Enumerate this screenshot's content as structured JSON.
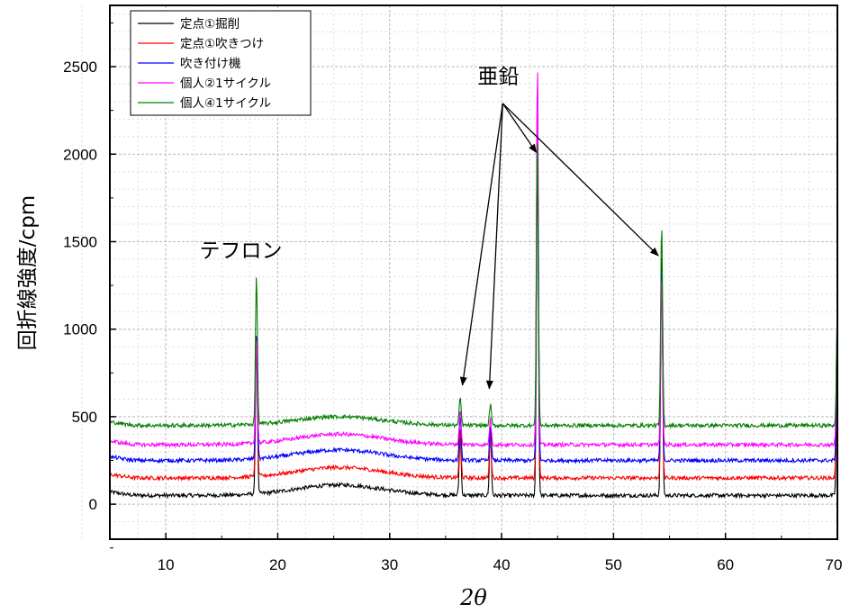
{
  "chart_data": {
    "type": "line",
    "xlabel": "2θ",
    "ylabel": "回折線強度/cpm",
    "xlim": [
      5,
      70
    ],
    "ylim": [
      -200,
      2850
    ],
    "xticks": [
      10,
      20,
      30,
      40,
      50,
      60,
      70
    ],
    "yticks": [
      0,
      500,
      1000,
      1500,
      2000,
      2500
    ],
    "grid": true,
    "legend_position": "top-left",
    "series": [
      {
        "name": "定点①掘削",
        "color": "#000000",
        "baseline": 50,
        "hump": 60,
        "peaks": [
          [
            18.1,
            900
          ],
          [
            36.3,
            350
          ],
          [
            39.0,
            380
          ],
          [
            43.2,
            2050
          ],
          [
            54.3,
            1400
          ],
          [
            70.0,
            1000
          ]
        ]
      },
      {
        "name": "定点①吹きつけ",
        "color": "#ff0000",
        "baseline": 150,
        "hump": 60,
        "peaks": [
          [
            18.1,
            820
          ],
          [
            36.3,
            280
          ],
          [
            39.0,
            260
          ],
          [
            43.2,
            2300
          ],
          [
            54.3,
            1200
          ],
          [
            70.0,
            900
          ]
        ]
      },
      {
        "name": "吹き付け機",
        "color": "#0000ff",
        "baseline": 250,
        "hump": 60,
        "peaks": [
          [
            18.1,
            720
          ],
          [
            36.3,
            260
          ],
          [
            39.0,
            200
          ],
          [
            43.2,
            1950
          ],
          [
            54.3,
            1100
          ],
          [
            70.0,
            850
          ]
        ]
      },
      {
        "name": "個人②1サイクル",
        "color": "#ff00ff",
        "baseline": 340,
        "hump": 60,
        "peaks": [
          [
            18.1,
            600
          ],
          [
            36.3,
            200
          ],
          [
            39.0,
            150
          ],
          [
            43.2,
            2180
          ],
          [
            54.3,
            950
          ],
          [
            70.0,
            750
          ]
        ]
      },
      {
        "name": "個人④1サイクル",
        "color": "#008000",
        "baseline": 450,
        "hump": 50,
        "peaks": [
          [
            18.1,
            850
          ],
          [
            36.3,
            160
          ],
          [
            39.0,
            120
          ],
          [
            43.2,
            1650
          ],
          [
            54.3,
            1150
          ],
          [
            70.0,
            650
          ]
        ]
      }
    ],
    "annotations": [
      {
        "text": "テフロン",
        "x": 16.7,
        "y": 1410
      },
      {
        "text": "亜鉛",
        "x": 39.7,
        "y": 2405,
        "arrow_from": [
          40.1,
          2290
        ],
        "arrows_to": [
          [
            36.5,
            680
          ],
          [
            38.9,
            660
          ],
          [
            43.1,
            2010
          ],
          [
            54.0,
            1420
          ]
        ]
      }
    ]
  }
}
